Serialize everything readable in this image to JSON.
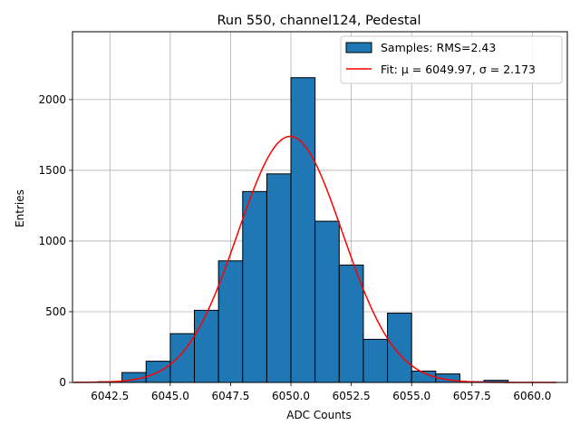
{
  "chart_data": {
    "type": "bar",
    "title": "Run 550, channel124, Pedestal",
    "xlabel": "ADC Counts",
    "ylabel": "Entries",
    "xlim": [
      6040.95,
      6061.45
    ],
    "ylim": [
      0,
      2480
    ],
    "xticks": [
      6042.5,
      6045.0,
      6047.5,
      6050.0,
      6052.5,
      6055.0,
      6057.5,
      6060.0
    ],
    "xtick_labels": [
      "6042.5",
      "6045.0",
      "6047.5",
      "6050.0",
      "6052.5",
      "6055.0",
      "6057.5",
      "6060.0"
    ],
    "yticks": [
      0,
      500,
      1000,
      1500,
      2000
    ],
    "ytick_labels": [
      "0",
      "500",
      "1000",
      "1500",
      "2000"
    ],
    "grid": true,
    "legend_position": "top-right",
    "series": [
      {
        "name": "Samples: RMS=2.43",
        "kind": "histogram",
        "color": "#1f77b4",
        "edgecolor": "#000000",
        "bins": [
          {
            "x0": 6041,
            "x1": 6042,
            "value": 0
          },
          {
            "x0": 6042,
            "x1": 6043,
            "value": 5
          },
          {
            "x0": 6043,
            "x1": 6044,
            "value": 70
          },
          {
            "x0": 6044,
            "x1": 6045,
            "value": 150
          },
          {
            "x0": 6045,
            "x1": 6046,
            "value": 345
          },
          {
            "x0": 6046,
            "x1": 6047,
            "value": 510
          },
          {
            "x0": 6047,
            "x1": 6048,
            "value": 860
          },
          {
            "x0": 6048,
            "x1": 6049,
            "value": 1350
          },
          {
            "x0": 6049,
            "x1": 6050,
            "value": 1475
          },
          {
            "x0": 6050,
            "x1": 6051,
            "value": 2155
          },
          {
            "x0": 6051,
            "x1": 6052,
            "value": 1140
          },
          {
            "x0": 6052,
            "x1": 6053,
            "value": 830
          },
          {
            "x0": 6053,
            "x1": 6054,
            "value": 305
          },
          {
            "x0": 6054,
            "x1": 6055,
            "value": 490
          },
          {
            "x0": 6055,
            "x1": 6056,
            "value": 80
          },
          {
            "x0": 6056,
            "x1": 6057,
            "value": 60
          },
          {
            "x0": 6057,
            "x1": 6058,
            "value": 5
          },
          {
            "x0": 6058,
            "x1": 6059,
            "value": 15
          },
          {
            "x0": 6059,
            "x1": 6060,
            "value": 0
          },
          {
            "x0": 6060,
            "x1": 6061,
            "value": 0
          }
        ]
      },
      {
        "name": "Fit: μ = 6049.97, σ = 2.173",
        "kind": "gaussian",
        "color": "#ff0000",
        "mu": 6049.97,
        "sigma": 2.173,
        "amplitude": 1740,
        "x_range": [
          6041,
          6061
        ]
      }
    ]
  }
}
